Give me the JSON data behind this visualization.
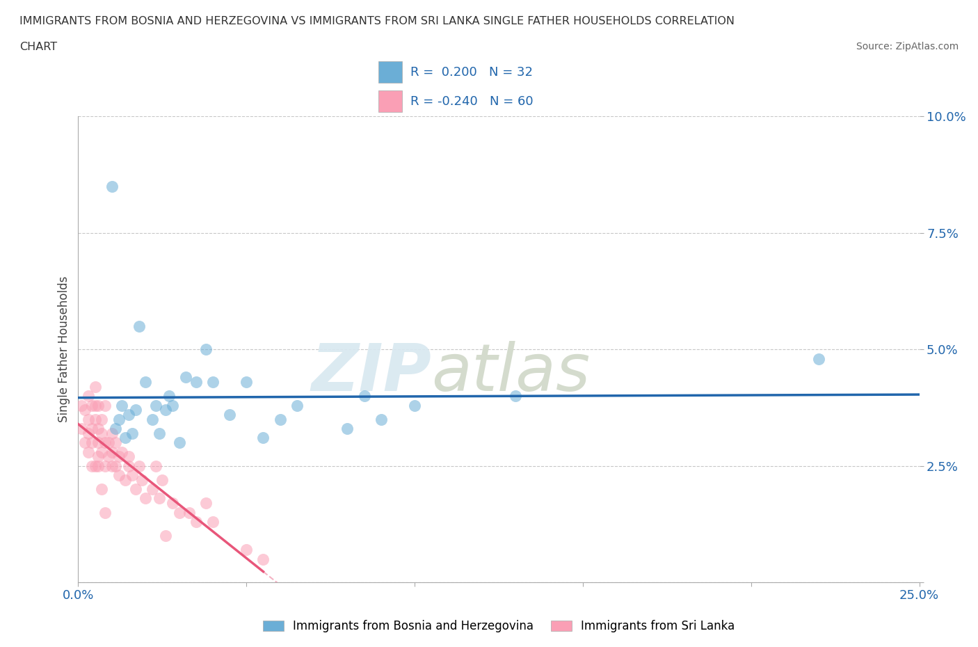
{
  "title_line1": "IMMIGRANTS FROM BOSNIA AND HERZEGOVINA VS IMMIGRANTS FROM SRI LANKA SINGLE FATHER HOUSEHOLDS CORRELATION",
  "title_line2": "CHART",
  "source": "Source: ZipAtlas.com",
  "ylabel": "Single Father Households",
  "legend_label1": "Immigrants from Bosnia and Herzegovina",
  "legend_label2": "Immigrants from Sri Lanka",
  "R1": 0.2,
  "N1": 32,
  "R2": -0.24,
  "N2": 60,
  "color1": "#6baed6",
  "color2": "#fa9fb5",
  "line_color1": "#2166ac",
  "line_color2": "#e8567a",
  "xmin": 0.0,
  "xmax": 0.25,
  "ymin": 0.0,
  "ymax": 0.1,
  "ytick_values": [
    0.0,
    0.025,
    0.05,
    0.075,
    0.1
  ],
  "ytick_labels": [
    "",
    "2.5%",
    "5.0%",
    "7.5%",
    "10.0%"
  ],
  "xtick_values": [
    0.0,
    0.05,
    0.1,
    0.15,
    0.2,
    0.25
  ],
  "xtick_labels": [
    "0.0%",
    "",
    "",
    "",
    "",
    "25.0%"
  ],
  "bosnia_x": [
    0.01,
    0.011,
    0.012,
    0.013,
    0.014,
    0.015,
    0.016,
    0.017,
    0.018,
    0.02,
    0.022,
    0.023,
    0.024,
    0.026,
    0.027,
    0.028,
    0.03,
    0.032,
    0.035,
    0.038,
    0.04,
    0.045,
    0.05,
    0.055,
    0.06,
    0.065,
    0.08,
    0.085,
    0.09,
    0.1,
    0.13,
    0.22
  ],
  "bosnia_y": [
    0.085,
    0.033,
    0.035,
    0.038,
    0.031,
    0.036,
    0.032,
    0.037,
    0.055,
    0.043,
    0.035,
    0.038,
    0.032,
    0.037,
    0.04,
    0.038,
    0.03,
    0.044,
    0.043,
    0.05,
    0.043,
    0.036,
    0.043,
    0.031,
    0.035,
    0.038,
    0.033,
    0.04,
    0.035,
    0.038,
    0.04,
    0.048
  ],
  "srilanka_x": [
    0.001,
    0.001,
    0.002,
    0.002,
    0.003,
    0.003,
    0.003,
    0.003,
    0.004,
    0.004,
    0.004,
    0.004,
    0.005,
    0.005,
    0.005,
    0.005,
    0.006,
    0.006,
    0.006,
    0.006,
    0.006,
    0.007,
    0.007,
    0.007,
    0.007,
    0.008,
    0.008,
    0.008,
    0.008,
    0.009,
    0.009,
    0.01,
    0.01,
    0.01,
    0.011,
    0.011,
    0.012,
    0.012,
    0.013,
    0.014,
    0.015,
    0.015,
    0.016,
    0.017,
    0.018,
    0.019,
    0.02,
    0.022,
    0.023,
    0.024,
    0.025,
    0.026,
    0.028,
    0.03,
    0.033,
    0.035,
    0.038,
    0.04,
    0.05,
    0.055
  ],
  "srilanka_y": [
    0.038,
    0.033,
    0.03,
    0.037,
    0.028,
    0.035,
    0.032,
    0.04,
    0.033,
    0.038,
    0.03,
    0.025,
    0.035,
    0.038,
    0.025,
    0.042,
    0.027,
    0.03,
    0.033,
    0.025,
    0.038,
    0.028,
    0.032,
    0.035,
    0.02,
    0.025,
    0.03,
    0.038,
    0.015,
    0.027,
    0.03,
    0.025,
    0.028,
    0.032,
    0.025,
    0.03,
    0.023,
    0.027,
    0.028,
    0.022,
    0.025,
    0.027,
    0.023,
    0.02,
    0.025,
    0.022,
    0.018,
    0.02,
    0.025,
    0.018,
    0.022,
    0.01,
    0.017,
    0.015,
    0.015,
    0.013,
    0.017,
    0.013,
    0.007,
    0.005
  ],
  "watermark_zip": "ZIP",
  "watermark_atlas": "atlas",
  "background_color": "#ffffff",
  "grid_color": "#c8c8c8"
}
